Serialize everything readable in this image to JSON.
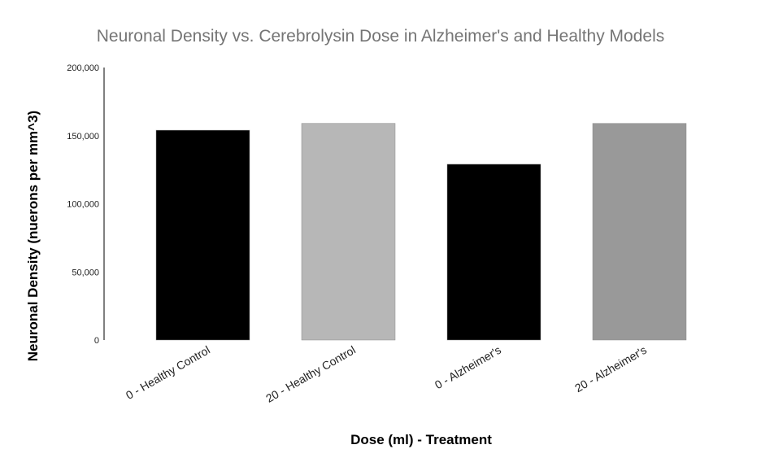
{
  "chart_data": {
    "type": "bar",
    "title": "Neuronal Density vs. Cerebrolysin Dose in Alzheimer's and Healthy Models",
    "xlabel": "Dose (ml) - Treatment",
    "ylabel": "Neuronal Density (nuerons per mm^3)",
    "categories": [
      "0 - Healthy Control",
      "20 - Healthy Control",
      "0 - Alzheimer's",
      "20 - Alzheimer's"
    ],
    "values": [
      154000,
      159000,
      129000,
      159000
    ],
    "bar_colors": [
      "#000000",
      "#b7b7b7",
      "#000000",
      "#999999"
    ],
    "ylim": [
      0,
      200000
    ],
    "y_ticks": [
      0,
      50000,
      100000,
      150000,
      200000
    ],
    "y_tick_labels": [
      "0",
      "50,000",
      "100,000",
      "150,000",
      "200,000"
    ],
    "grid": false,
    "legend": "none"
  }
}
